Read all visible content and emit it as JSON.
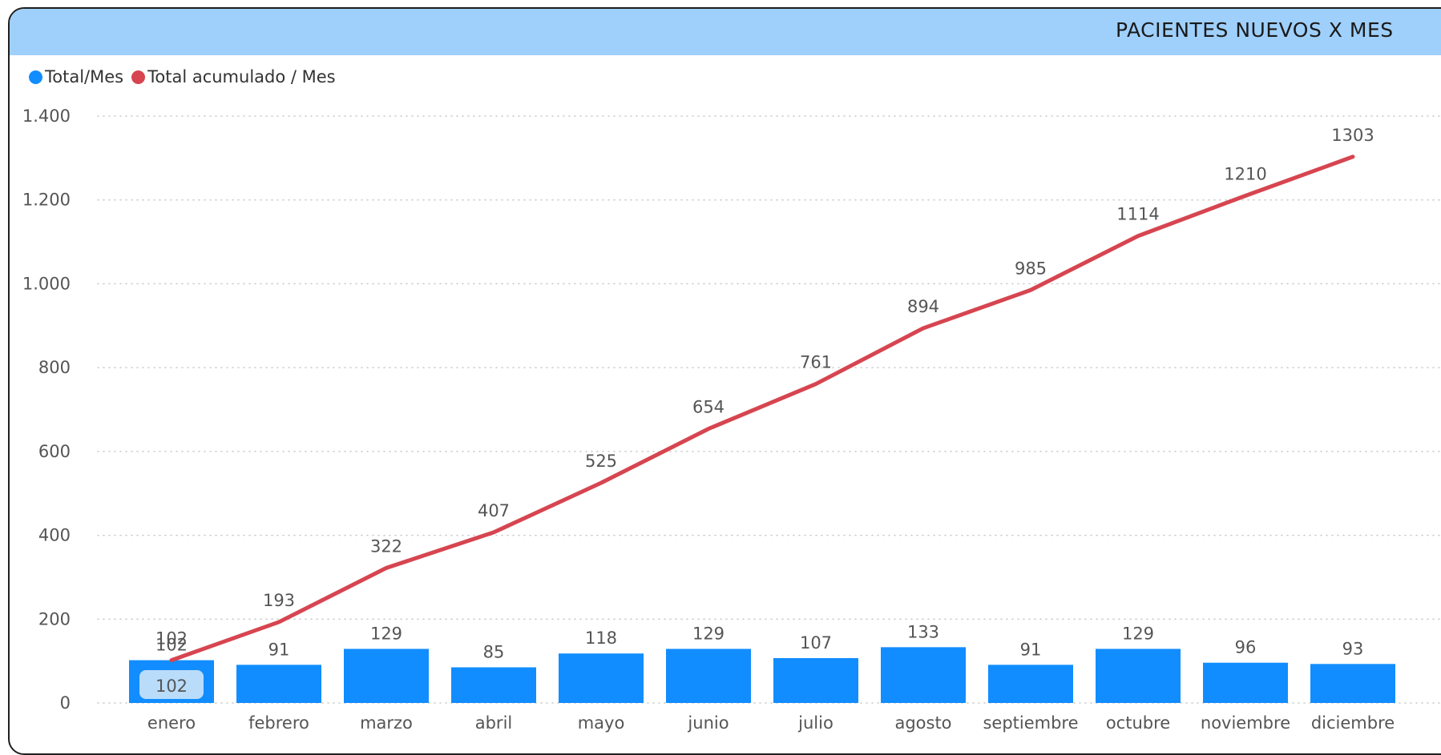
{
  "chart_data": {
    "type": "bar+line",
    "title": "PACIENTES NUEVOS X MES",
    "legend_position": "top-left",
    "categories": [
      "enero",
      "febrero",
      "marzo",
      "abril",
      "mayo",
      "junio",
      "julio",
      "agosto",
      "septiembre",
      "octubre",
      "noviembre",
      "diciembre"
    ],
    "series": [
      {
        "name": "Total/Mes",
        "type": "bar",
        "color": "#118dff",
        "values": [
          102,
          91,
          129,
          85,
          118,
          129,
          107,
          133,
          91,
          129,
          96,
          93
        ]
      },
      {
        "name": "Total acumulado / Mes",
        "type": "line",
        "color": "#d64550",
        "values": [
          102,
          193,
          322,
          407,
          525,
          654,
          761,
          894,
          985,
          1114,
          1210,
          1303
        ]
      }
    ],
    "ylim": [
      0,
      1400
    ],
    "yticks": [
      0,
      200,
      400,
      600,
      800,
      1000,
      1200,
      1400
    ],
    "ytick_labels": [
      "0",
      "200",
      "400",
      "600",
      "800",
      "1.000",
      "1.200",
      "1.400"
    ],
    "grid": true,
    "highlighted_bar_label": "102"
  }
}
